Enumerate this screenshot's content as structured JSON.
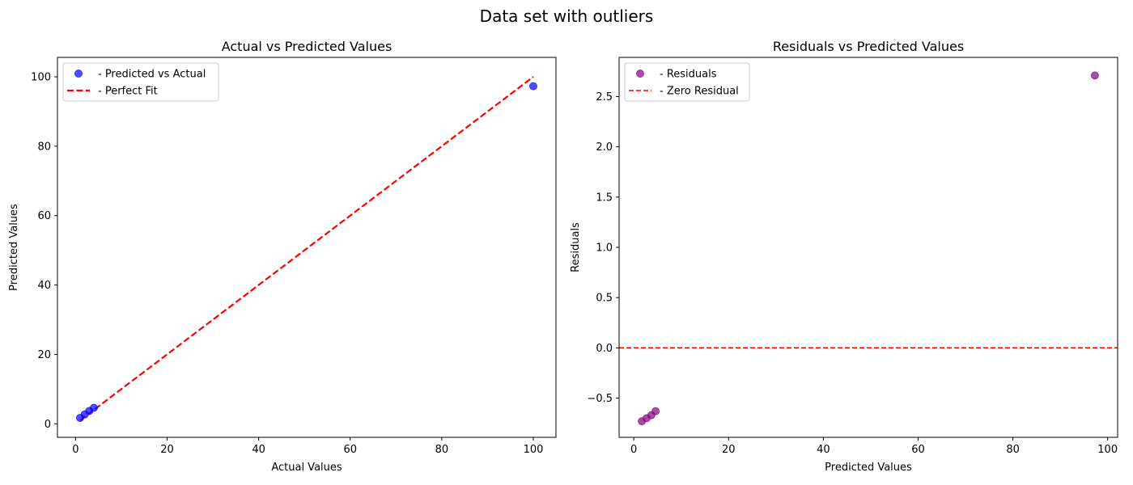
{
  "figure": {
    "suptitle": "Data set with outliers"
  },
  "chart_data": [
    {
      "type": "scatter",
      "title": "Actual vs Predicted Values",
      "xlabel": "Actual Values",
      "ylabel": "Predicted Values",
      "xlim": [
        -3.95,
        104.95
      ],
      "ylim": [
        -3.9,
        105.6
      ],
      "xticks": [
        0,
        20,
        40,
        60,
        80,
        100
      ],
      "yticks": [
        0,
        20,
        40,
        60,
        80,
        100
      ],
      "tick_labels_x": [
        "0",
        "20",
        "40",
        "60",
        "80",
        "100"
      ],
      "tick_labels_y": [
        "0",
        "20",
        "40",
        "60",
        "80",
        "100"
      ],
      "legend_position": "upper-left",
      "series": [
        {
          "name": "- Predicted vs Actual",
          "kind": "scatter",
          "color": "#0000ff",
          "x": [
            1,
            2,
            3,
            4,
            100
          ],
          "y": [
            1.7,
            2.7,
            3.7,
            4.6,
            97.3
          ]
        },
        {
          "name": "- Perfect Fit",
          "kind": "line",
          "style": "dashed",
          "color": "#ff0000",
          "x": [
            1,
            100
          ],
          "y": [
            1,
            100
          ]
        }
      ]
    },
    {
      "type": "scatter",
      "title": "Residuals vs Predicted Values",
      "xlabel": "Predicted Values",
      "ylabel": "Residuals",
      "xlim": [
        -3.1,
        102.1
      ],
      "ylim": [
        -0.89,
        2.89
      ],
      "xticks": [
        0,
        20,
        40,
        60,
        80,
        100
      ],
      "yticks": [
        -0.5,
        0.0,
        0.5,
        1.0,
        1.5,
        2.0,
        2.5
      ],
      "tick_labels_x": [
        "0",
        "20",
        "40",
        "60",
        "80",
        "100"
      ],
      "tick_labels_y": [
        "−0.5",
        "0.0",
        "0.5",
        "1.0",
        "1.5",
        "2.0",
        "2.5"
      ],
      "legend_position": "upper-left",
      "series": [
        {
          "name": "- Residuals",
          "kind": "scatter",
          "color": "#800080",
          "x": [
            1.7,
            2.7,
            3.7,
            4.6,
            97.3
          ],
          "y": [
            -0.73,
            -0.7,
            -0.67,
            -0.63,
            2.71
          ]
        },
        {
          "name": "- Zero Residual",
          "kind": "hline",
          "style": "dashed",
          "color": "#ff0000",
          "y": 0
        }
      ]
    }
  ]
}
